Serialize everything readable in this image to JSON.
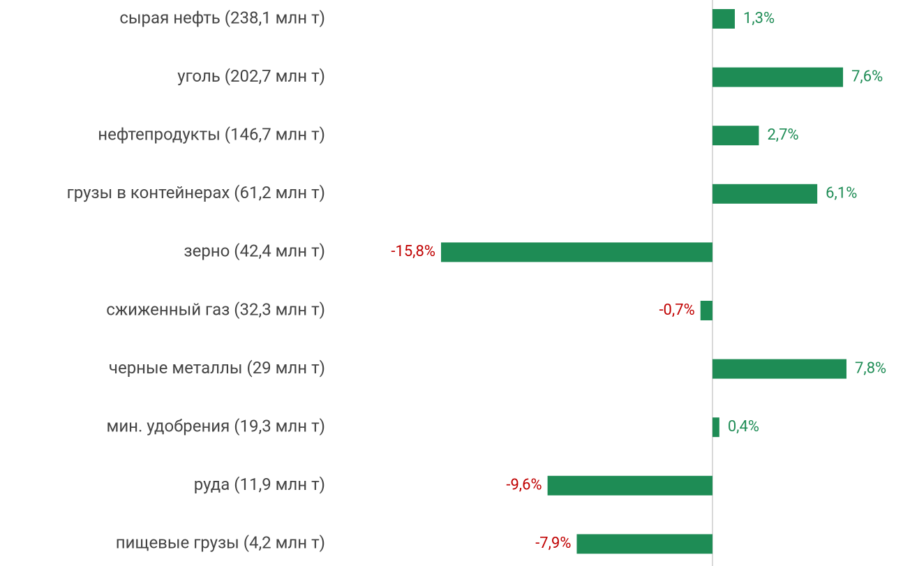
{
  "chart_data": {
    "type": "bar",
    "orientation": "horizontal",
    "categories": [
      "сырая нефть (238,1 млн т)",
      "уголь (202,7 млн т)",
      "нефтепродукты (146,7 млн т)",
      "грузы в контейнерах (61,2 млн т)",
      "зерно (42,4 млн т)",
      "сжиженный газ (32,3 млн т)",
      "черные металлы (29 млн т)",
      "мин. удобрения (19,3 млн т)",
      "руда (11,9 млн т)",
      "пищевые грузы (4,2 млн т)"
    ],
    "values": [
      1.3,
      7.6,
      2.7,
      6.1,
      -15.8,
      -0.7,
      7.8,
      0.4,
      -9.6,
      -7.9
    ],
    "value_labels": [
      "1,3%",
      "7,6%",
      "2,7%",
      "6,1%",
      "-15,8%",
      "-0,7%",
      "7,8%",
      "0,4%",
      "-9,6%",
      "-7,9%"
    ],
    "color": "#1e8c55",
    "positive_label_color": "#1e8c55",
    "negative_label_color": "#c00000"
  }
}
